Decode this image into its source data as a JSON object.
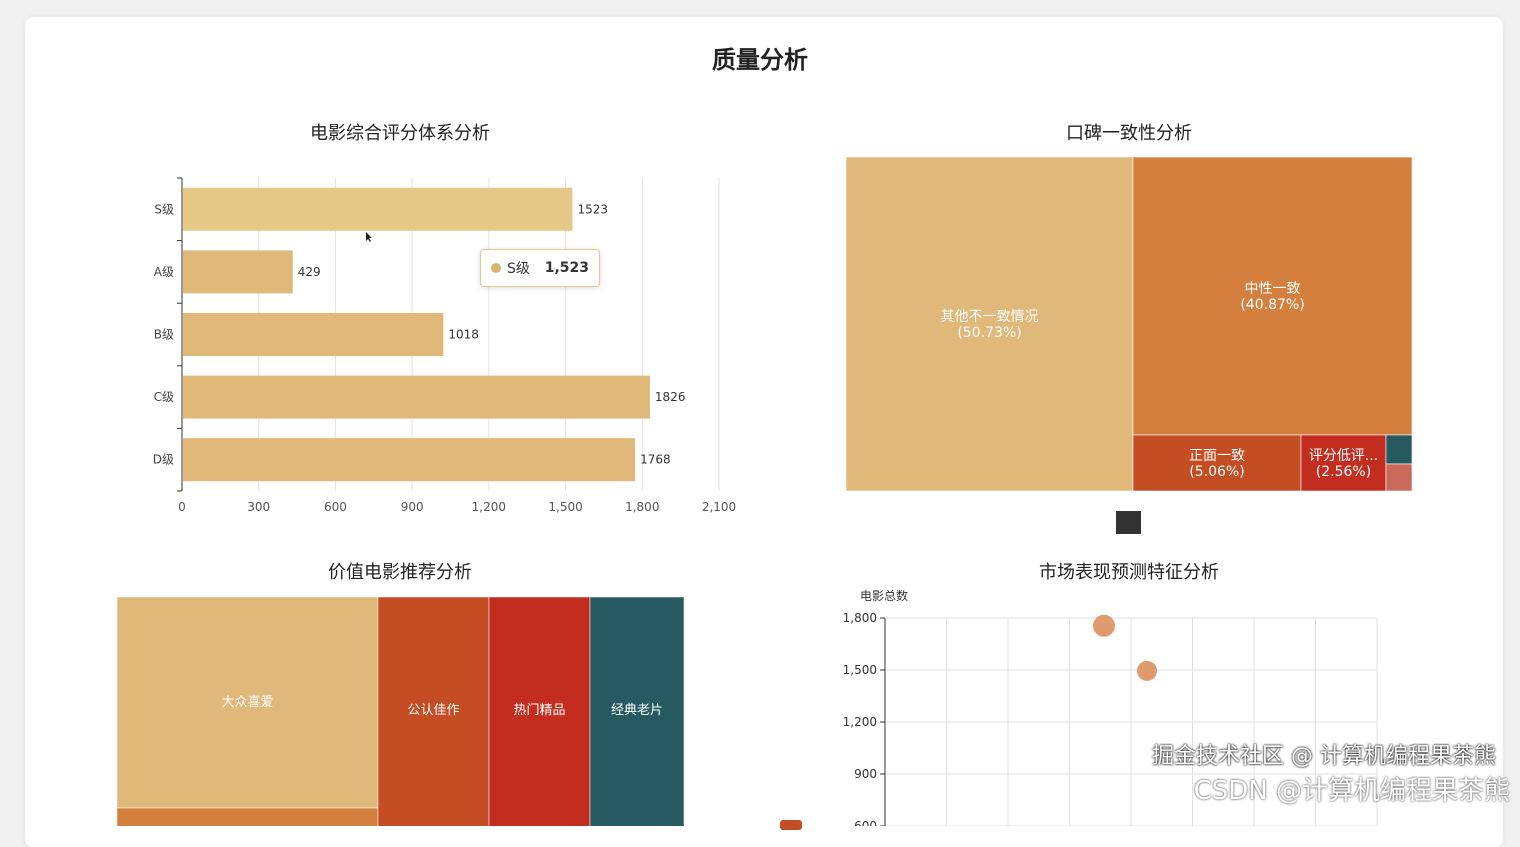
{
  "page_title": "质量分析",
  "colors": {
    "gold": "#e6c988",
    "sand": "#e0b97a",
    "orange": "#d57f3e",
    "redorange": "#c44d24",
    "red": "#c22d1f",
    "teal": "#265a60",
    "pink": "#c8695a",
    "bubble": "#df9a6e",
    "dark": "#333333"
  },
  "chart_data": [
    {
      "type": "bar",
      "orientation": "horizontal",
      "title": "电影综合评分体系分析",
      "categories": [
        "S级",
        "A级",
        "B级",
        "C级",
        "D级"
      ],
      "values": [
        1523,
        429,
        1018,
        1826,
        1768
      ],
      "xlim": [
        0,
        2100
      ],
      "xticks": [
        "0",
        "300",
        "600",
        "900",
        "1,200",
        "1,500",
        "1,800",
        "2,100"
      ],
      "grid": true,
      "tooltip": {
        "label": "S级",
        "value": "1,523"
      }
    },
    {
      "type": "treemap",
      "title": "口碑一致性分析",
      "items": [
        {
          "name": "其他不一致情况",
          "pct": "(50.73%)",
          "color": "#e0b97a"
        },
        {
          "name": "中性一致",
          "pct": "(40.87%)",
          "color": "#d57f3e"
        },
        {
          "name": "正面一致",
          "pct": "(5.06%)",
          "color": "#c44d24"
        },
        {
          "name": "评分低评...",
          "pct": "(2.56%)",
          "color": "#c22d1f"
        },
        {
          "name": "",
          "pct": "",
          "color": "#265a60"
        },
        {
          "name": "",
          "pct": "",
          "color": "#c8695a"
        }
      ]
    },
    {
      "type": "treemap",
      "title": "价值电影推荐分析",
      "items": [
        {
          "name": "大众喜爱",
          "color": "#e0b97a"
        },
        {
          "name": "",
          "color": "#d57f3e"
        },
        {
          "name": "公认佳作",
          "color": "#c44d24"
        },
        {
          "name": "热门精品",
          "color": "#c22d1f"
        },
        {
          "name": "经典老片",
          "color": "#265a60"
        }
      ]
    },
    {
      "type": "scatter",
      "title": "市场表现预测特征分析",
      "ylabel": "电影总数",
      "yticks": [
        "1,800",
        "1,500",
        "1,200",
        "900",
        "600"
      ],
      "ylim": [
        600,
        1800
      ],
      "grid": true,
      "points": [
        {
          "y": 1755
        },
        {
          "y": 1495
        }
      ]
    }
  ],
  "watermark": {
    "line1": "掘金技术社区 @ 计算机编程果茶熊",
    "line2": "CSDN @计算机编程果茶熊"
  }
}
